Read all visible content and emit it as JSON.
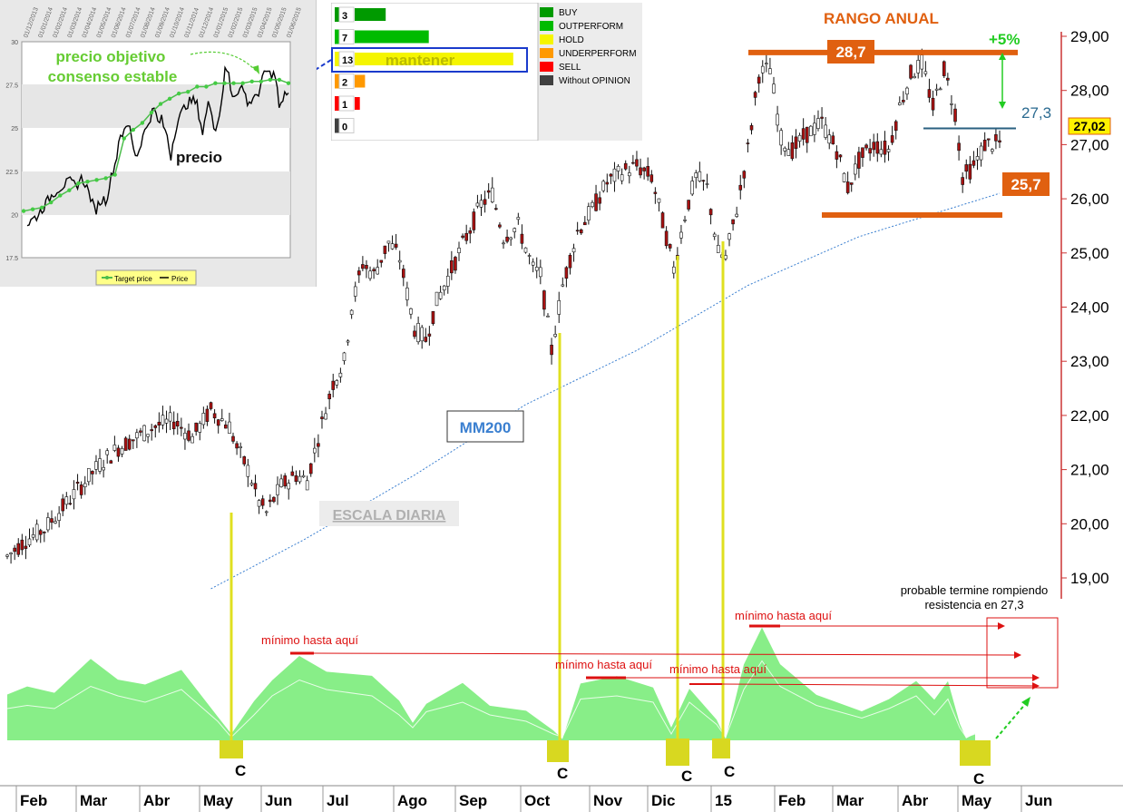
{
  "chart_data": {
    "type": "line",
    "title": "",
    "x_ticks": [
      "Feb",
      "Mar",
      "Abr",
      "May",
      "Jun",
      "Jul",
      "Ago",
      "Sep",
      "Oct",
      "Nov",
      "Dic",
      "15",
      "Feb",
      "Mar",
      "Abr",
      "May",
      "Jun"
    ],
    "y_ticks": [
      "19,00",
      "20,00",
      "21,00",
      "22,00",
      "23,00",
      "24,00",
      "25,00",
      "26,00",
      "27,00",
      "28,00",
      "29,00"
    ],
    "ylim": [
      18.7,
      29.1
    ],
    "price_series": {
      "name": "precio",
      "points": [
        [
          0,
          19.4
        ],
        [
          5,
          19.7
        ],
        [
          10,
          19.9
        ],
        [
          15,
          20.3
        ],
        [
          20,
          20.7
        ],
        [
          25,
          21.1
        ],
        [
          30,
          21.4
        ],
        [
          35,
          21.6
        ],
        [
          40,
          21.8
        ],
        [
          45,
          21.9
        ],
        [
          50,
          21.6
        ],
        [
          55,
          22.1
        ],
        [
          60,
          21.8
        ],
        [
          62,
          21.4
        ],
        [
          65,
          21.0
        ],
        [
          68,
          20.4
        ],
        [
          70,
          20.2
        ],
        [
          74,
          20.7
        ],
        [
          78,
          20.9
        ],
        [
          81,
          20.8
        ],
        [
          84,
          21.6
        ],
        [
          88,
          22.6
        ],
        [
          91,
          23.0
        ],
        [
          93,
          24.0
        ],
        [
          96,
          24.8
        ],
        [
          99,
          24.6
        ],
        [
          103,
          25.2
        ],
        [
          106,
          24.9
        ],
        [
          110,
          23.6
        ],
        [
          113,
          23.4
        ],
        [
          116,
          24.1
        ],
        [
          120,
          24.7
        ],
        [
          124,
          25.3
        ],
        [
          128,
          25.9
        ],
        [
          131,
          26.1
        ],
        [
          134,
          25.3
        ],
        [
          138,
          25.5
        ],
        [
          142,
          24.7
        ],
        [
          144,
          24.6
        ],
        [
          147,
          23.2
        ],
        [
          150,
          24.4
        ],
        [
          154,
          25.4
        ],
        [
          158,
          25.8
        ],
        [
          162,
          26.3
        ],
        [
          166,
          26.5
        ],
        [
          170,
          26.6
        ],
        [
          174,
          26.4
        ],
        [
          178,
          25.3
        ],
        [
          180,
          24.7
        ],
        [
          183,
          25.7
        ],
        [
          186,
          26.4
        ],
        [
          189,
          26.2
        ],
        [
          192,
          25.0
        ],
        [
          194,
          24.9
        ],
        [
          197,
          25.8
        ],
        [
          200,
          26.9
        ],
        [
          203,
          28.3
        ],
        [
          206,
          28.4
        ],
        [
          209,
          27.1
        ],
        [
          212,
          26.9
        ],
        [
          216,
          27.2
        ],
        [
          220,
          27.4
        ],
        [
          224,
          26.9
        ],
        [
          227,
          26.2
        ],
        [
          230,
          26.7
        ],
        [
          234,
          27.0
        ],
        [
          238,
          26.9
        ],
        [
          241,
          27.7
        ],
        [
          244,
          28.3
        ],
        [
          247,
          28.5
        ],
        [
          250,
          27.7
        ],
        [
          253,
          28.4
        ],
        [
          256,
          27.6
        ],
        [
          258,
          26.4
        ],
        [
          261,
          26.6
        ],
        [
          264,
          27.0
        ],
        [
          268,
          27.02
        ]
      ],
      "n": 268
    },
    "ma200": {
      "name": "MM200",
      "points": [
        [
          55,
          18.8
        ],
        [
          80,
          19.7
        ],
        [
          110,
          20.9
        ],
        [
          140,
          22.2
        ],
        [
          170,
          23.2
        ],
        [
          200,
          24.4
        ],
        [
          230,
          25.3
        ],
        [
          268,
          26.1
        ]
      ]
    },
    "horizontal_levels": [
      {
        "value": 28.7,
        "label": "28,7"
      },
      {
        "value": 27.3,
        "label": "27,3"
      },
      {
        "value": 25.7,
        "label": "25,7"
      }
    ],
    "last_price_label": "27,02",
    "annotations": {
      "range_title": "RANGO ANUAL",
      "pct": "+5%",
      "ma_label": "MM200",
      "scale_label": "ESCALA DIARIA",
      "min_labels": [
        "mínimo hasta aquí",
        "mínimo hasta aquí",
        "mínimo hasta aquí",
        "mínimo hasta aquí"
      ],
      "note_line1": "probable termine rompiendo",
      "note_line2": "resistencia en 27,3",
      "c_labels": [
        "C",
        "C",
        "C",
        "C",
        "C"
      ]
    },
    "inset": {
      "title_line1": "precio objetivo",
      "title_line2": "consenso estable",
      "price_label": "precio",
      "y_ticks": [
        "30",
        "27.5",
        "25",
        "22.5",
        "20",
        "17.5"
      ],
      "x_dates": [
        "01/12/2013",
        "01/01/2014",
        "01/02/2014",
        "01/03/2014",
        "01/04/2014",
        "01/05/2014",
        "01/06/2014",
        "01/07/2014",
        "01/08/2014",
        "01/09/2014",
        "01/10/2014",
        "01/11/2014",
        "01/12/2014",
        "01/01/2015",
        "01/02/2015",
        "01/03/2015",
        "01/04/2015",
        "01/05/2015",
        "01/06/2015"
      ],
      "legend_target": "Target price",
      "legend_price": "Price",
      "target_points": [
        20.2,
        20.3,
        20.4,
        20.7,
        21.1,
        21.4,
        21.8,
        21.9,
        22.0,
        22.1,
        22.3,
        24.4,
        24.9,
        25.3,
        25.9,
        26.4,
        26.7,
        27.0,
        27.1,
        27.4,
        27.4,
        27.6,
        27.6,
        27.6,
        27.6,
        27.7,
        27.7,
        27.8,
        27.8,
        27.6
      ]
    },
    "ratings": {
      "items": [
        {
          "count": "3",
          "label": "BUY",
          "color": "#009a00",
          "frac": 0.18
        },
        {
          "count": "7",
          "label": "OUTPERFORM",
          "color": "#00bb00",
          "frac": 0.43
        },
        {
          "count": "13",
          "label": "HOLD",
          "color": "#f5f500",
          "frac": 0.92,
          "text": "mantener"
        },
        {
          "count": "2",
          "label": "UNDERPERFORM",
          "color": "#ff9900",
          "frac": 0.06
        },
        {
          "count": "1",
          "label": "SELL",
          "color": "#ff0000",
          "frac": 0.03
        },
        {
          "count": "0",
          "label": "Without OPINION",
          "color": "#404040",
          "frac": 0
        }
      ]
    }
  }
}
